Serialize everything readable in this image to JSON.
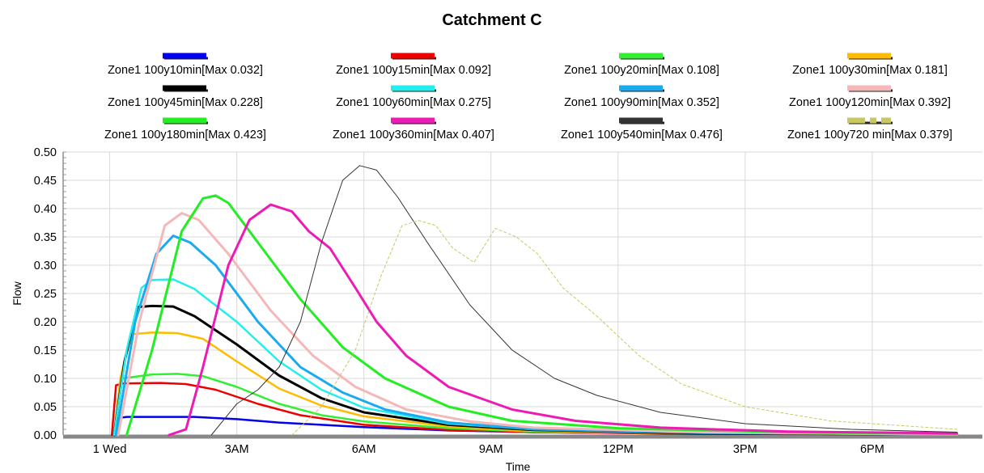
{
  "chart_data": {
    "type": "line",
    "title": "Catchment C",
    "xlabel": "Time",
    "ylabel": "Flow",
    "ylim": [
      0,
      0.5
    ],
    "xlim_hours": [
      -1.1,
      20.6
    ],
    "y_ticks": [
      "0.00",
      "0.05",
      "0.10",
      "0.15",
      "0.20",
      "0.25",
      "0.30",
      "0.35",
      "0.40",
      "0.45",
      "0.50"
    ],
    "x_ticks": [
      {
        "label": "1 Wed",
        "hour": 0
      },
      {
        "label": "3AM",
        "hour": 3
      },
      {
        "label": "6AM",
        "hour": 6
      },
      {
        "label": "9AM",
        "hour": 9
      },
      {
        "label": "12PM",
        "hour": 12
      },
      {
        "label": "3PM",
        "hour": 15
      },
      {
        "label": "6PM",
        "hour": 18
      }
    ],
    "grid": true,
    "legend_position": "top",
    "series": [
      {
        "name": "Zone1 100y10min[Max 0.032]",
        "color": "#0000ee",
        "width": 2.5,
        "dash": "",
        "points": [
          [
            0.1,
            0
          ],
          [
            0.2,
            0.03
          ],
          [
            0.4,
            0.032
          ],
          [
            2.0,
            0.032
          ],
          [
            3.0,
            0.028
          ],
          [
            4.0,
            0.022
          ],
          [
            6.0,
            0.014
          ],
          [
            8.0,
            0.008
          ],
          [
            10.0,
            0.005
          ],
          [
            14.0,
            0.002
          ],
          [
            20.0,
            0.001
          ]
        ]
      },
      {
        "name": "Zone1 100y15min[Max 0.092]",
        "color": "#ee0000",
        "width": 2.5,
        "dash": "",
        "points": [
          [
            0.05,
            0
          ],
          [
            0.15,
            0.088
          ],
          [
            0.3,
            0.091
          ],
          [
            1.2,
            0.092
          ],
          [
            1.8,
            0.09
          ],
          [
            2.5,
            0.08
          ],
          [
            3.5,
            0.055
          ],
          [
            4.5,
            0.035
          ],
          [
            6.0,
            0.018
          ],
          [
            8.0,
            0.009
          ],
          [
            10.0,
            0.005
          ],
          [
            14.0,
            0.002
          ],
          [
            20.0,
            0.001
          ]
        ]
      },
      {
        "name": "Zone1 100y20min[Max 0.108]",
        "color": "#33ee33",
        "width": 2.5,
        "dash": "",
        "points": [
          [
            0.1,
            0
          ],
          [
            0.3,
            0.1
          ],
          [
            1.0,
            0.107
          ],
          [
            1.6,
            0.108
          ],
          [
            2.2,
            0.104
          ],
          [
            3.0,
            0.085
          ],
          [
            4.0,
            0.055
          ],
          [
            5.0,
            0.035
          ],
          [
            6.0,
            0.024
          ],
          [
            8.0,
            0.012
          ],
          [
            10.0,
            0.006
          ],
          [
            14.0,
            0.003
          ],
          [
            20.0,
            0.001
          ]
        ]
      },
      {
        "name": "Zone1 100y30min[Max 0.181]",
        "color": "#ffbb00",
        "width": 2.5,
        "dash": "",
        "points": [
          [
            0.1,
            0
          ],
          [
            0.25,
            0.1
          ],
          [
            0.5,
            0.178
          ],
          [
            1.0,
            0.181
          ],
          [
            1.6,
            0.18
          ],
          [
            2.2,
            0.17
          ],
          [
            3.0,
            0.13
          ],
          [
            4.0,
            0.082
          ],
          [
            5.0,
            0.052
          ],
          [
            6.0,
            0.033
          ],
          [
            8.0,
            0.015
          ],
          [
            10.0,
            0.007
          ],
          [
            14.0,
            0.003
          ],
          [
            20.0,
            0.001
          ]
        ]
      },
      {
        "name": "Zone1 100y45min[Max 0.228]",
        "color": "#000000",
        "width": 3,
        "dash": "",
        "points": [
          [
            0.1,
            0
          ],
          [
            0.35,
            0.13
          ],
          [
            0.65,
            0.226
          ],
          [
            1.0,
            0.228
          ],
          [
            1.5,
            0.227
          ],
          [
            2.0,
            0.21
          ],
          [
            3.0,
            0.16
          ],
          [
            4.0,
            0.105
          ],
          [
            5.0,
            0.065
          ],
          [
            6.0,
            0.04
          ],
          [
            8.0,
            0.018
          ],
          [
            10.0,
            0.009
          ],
          [
            14.0,
            0.003
          ],
          [
            20.0,
            0.001
          ]
        ]
      },
      {
        "name": "Zone1 100y60min[Max 0.275]",
        "color": "#22eeee",
        "width": 2.5,
        "dash": "",
        "points": [
          [
            0.1,
            0
          ],
          [
            0.4,
            0.15
          ],
          [
            0.75,
            0.26
          ],
          [
            1.0,
            0.274
          ],
          [
            1.5,
            0.275
          ],
          [
            2.0,
            0.258
          ],
          [
            3.0,
            0.2
          ],
          [
            4.0,
            0.13
          ],
          [
            5.0,
            0.08
          ],
          [
            6.0,
            0.048
          ],
          [
            8.0,
            0.02
          ],
          [
            10.0,
            0.01
          ],
          [
            14.0,
            0.004
          ],
          [
            20.0,
            0.001
          ]
        ]
      },
      {
        "name": "Zone1 100y90min[Max 0.352]",
        "color": "#1aaaee",
        "width": 3,
        "dash": "",
        "points": [
          [
            0.15,
            0
          ],
          [
            0.6,
            0.2
          ],
          [
            1.1,
            0.32
          ],
          [
            1.5,
            0.352
          ],
          [
            1.9,
            0.34
          ],
          [
            2.5,
            0.3
          ],
          [
            3.5,
            0.2
          ],
          [
            4.5,
            0.12
          ],
          [
            5.5,
            0.075
          ],
          [
            6.5,
            0.045
          ],
          [
            8.0,
            0.022
          ],
          [
            10.0,
            0.01
          ],
          [
            14.0,
            0.004
          ],
          [
            20.0,
            0.001
          ]
        ]
      },
      {
        "name": "Zone1 100y120min[Max 0.392]",
        "color": "#f5b8b8",
        "width": 3,
        "dash": "",
        "points": [
          [
            0.2,
            0
          ],
          [
            0.7,
            0.2
          ],
          [
            1.3,
            0.37
          ],
          [
            1.7,
            0.392
          ],
          [
            2.1,
            0.38
          ],
          [
            2.8,
            0.32
          ],
          [
            3.8,
            0.22
          ],
          [
            4.8,
            0.14
          ],
          [
            5.8,
            0.085
          ],
          [
            7.0,
            0.045
          ],
          [
            8.5,
            0.024
          ],
          [
            10.0,
            0.013
          ],
          [
            14.0,
            0.005
          ],
          [
            20.0,
            0.001
          ]
        ]
      },
      {
        "name": "Zone1 100y180min[Max 0.423]",
        "color": "#22ee22",
        "width": 3,
        "dash": "",
        "points": [
          [
            0.4,
            0
          ],
          [
            1.0,
            0.15
          ],
          [
            1.7,
            0.36
          ],
          [
            2.2,
            0.418
          ],
          [
            2.5,
            0.423
          ],
          [
            2.8,
            0.41
          ],
          [
            3.5,
            0.34
          ],
          [
            4.5,
            0.24
          ],
          [
            5.5,
            0.155
          ],
          [
            6.5,
            0.1
          ],
          [
            8.0,
            0.05
          ],
          [
            9.5,
            0.025
          ],
          [
            12.0,
            0.012
          ],
          [
            16.0,
            0.005
          ],
          [
            20.0,
            0.002
          ]
        ]
      },
      {
        "name": "Zone1 100y360min[Max 0.407]",
        "color": "#ee1ab4",
        "width": 3,
        "dash": "",
        "points": [
          [
            1.4,
            0
          ],
          [
            1.8,
            0.01
          ],
          [
            2.2,
            0.12
          ],
          [
            2.8,
            0.3
          ],
          [
            3.3,
            0.38
          ],
          [
            3.8,
            0.407
          ],
          [
            4.3,
            0.395
          ],
          [
            4.7,
            0.36
          ],
          [
            5.2,
            0.33
          ],
          [
            5.8,
            0.26
          ],
          [
            6.3,
            0.2
          ],
          [
            7.0,
            0.14
          ],
          [
            8.0,
            0.085
          ],
          [
            9.5,
            0.045
          ],
          [
            11.0,
            0.025
          ],
          [
            13.0,
            0.013
          ],
          [
            16.0,
            0.006
          ],
          [
            20.0,
            0.003
          ]
        ]
      },
      {
        "name": "Zone1 100y540min[Max 0.476]",
        "color": "#333333",
        "width": 1,
        "dash": "",
        "points": [
          [
            2.4,
            0
          ],
          [
            3.0,
            0.055
          ],
          [
            3.5,
            0.08
          ],
          [
            4.0,
            0.12
          ],
          [
            4.5,
            0.2
          ],
          [
            5.0,
            0.34
          ],
          [
            5.5,
            0.45
          ],
          [
            5.9,
            0.476
          ],
          [
            6.3,
            0.468
          ],
          [
            6.8,
            0.42
          ],
          [
            7.5,
            0.34
          ],
          [
            8.5,
            0.23
          ],
          [
            9.5,
            0.15
          ],
          [
            10.5,
            0.1
          ],
          [
            11.5,
            0.07
          ],
          [
            13.0,
            0.04
          ],
          [
            15.0,
            0.02
          ],
          [
            17.5,
            0.01
          ],
          [
            20.0,
            0.005
          ]
        ]
      },
      {
        "name": "Zone1 100y720 min[Max 0.379]",
        "color": "#c8c860",
        "width": 1,
        "dash": "3,3",
        "points": [
          [
            4.3,
            0
          ],
          [
            5.0,
            0.05
          ],
          [
            5.8,
            0.15
          ],
          [
            6.4,
            0.28
          ],
          [
            6.9,
            0.37
          ],
          [
            7.3,
            0.379
          ],
          [
            7.7,
            0.37
          ],
          [
            8.1,
            0.33
          ],
          [
            8.6,
            0.305
          ],
          [
            9.1,
            0.365
          ],
          [
            9.6,
            0.35
          ],
          [
            10.1,
            0.32
          ],
          [
            10.7,
            0.26
          ],
          [
            11.5,
            0.21
          ],
          [
            12.5,
            0.14
          ],
          [
            13.5,
            0.09
          ],
          [
            15.0,
            0.05
          ],
          [
            17.0,
            0.025
          ],
          [
            20.0,
            0.01
          ]
        ]
      }
    ]
  }
}
